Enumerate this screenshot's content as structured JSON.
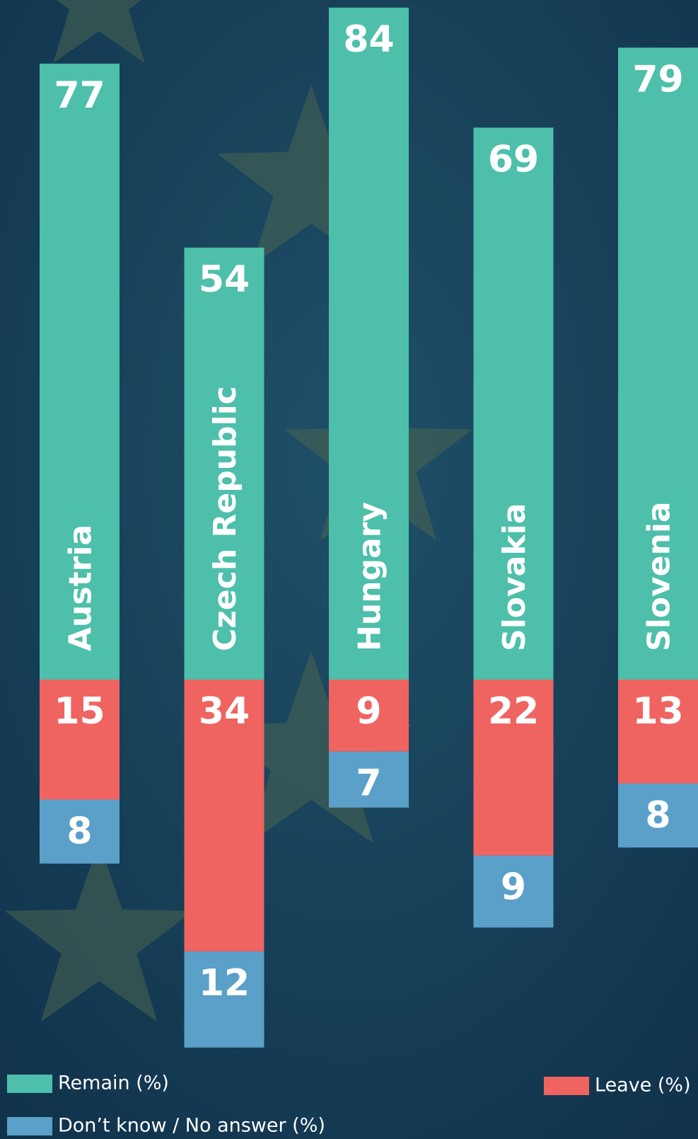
{
  "chart_data": {
    "type": "bar",
    "stacked": true,
    "diverging": true,
    "categories": [
      "Austria",
      "Czech Republic",
      "Hungary",
      "Slovakia",
      "Slovenia"
    ],
    "series": [
      {
        "name": "Remain (%)",
        "color": "#4dbfaa",
        "values": [
          77,
          54,
          84,
          69,
          79
        ]
      },
      {
        "name": "Leave (%)",
        "color": "#ef6461",
        "values": [
          15,
          34,
          9,
          22,
          13
        ]
      },
      {
        "name": "Don’t know / No answer (%)",
        "color": "#5aa0c8",
        "values": [
          8,
          12,
          7,
          9,
          8
        ]
      }
    ]
  }
}
